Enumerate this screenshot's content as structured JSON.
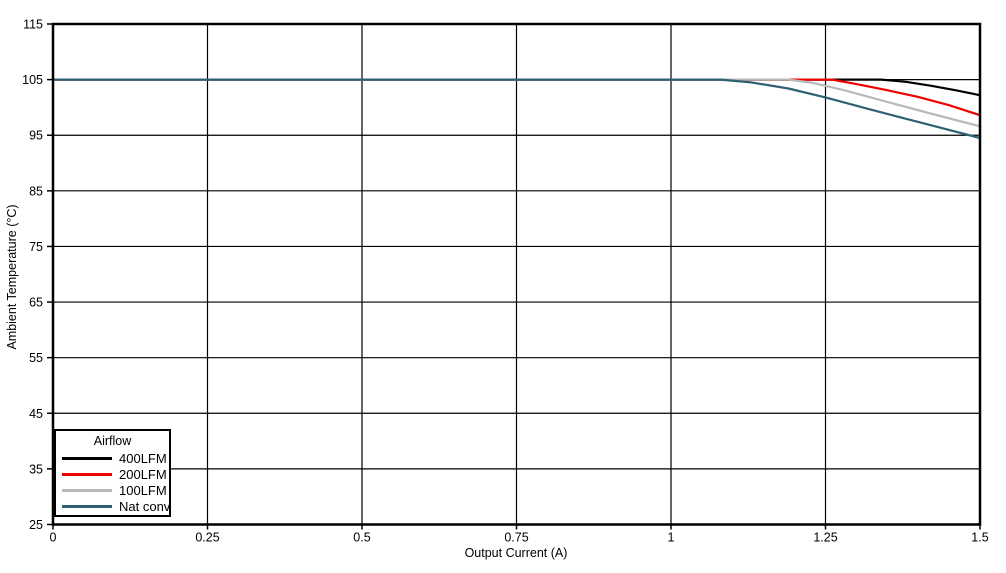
{
  "chart_data": {
    "type": "line",
    "title": "",
    "xlabel": "Output Current (A)",
    "ylabel": "Ambient Temperature (°C)",
    "xlim": [
      0,
      1.5
    ],
    "ylim": [
      25,
      115
    ],
    "xticks": [
      0,
      0.25,
      0.5,
      0.75,
      1,
      1.25,
      1.5
    ],
    "xtick_labels": [
      "0",
      "0.25",
      "0.5",
      "0.75",
      "1",
      "1.25",
      "1.5"
    ],
    "yticks": [
      25,
      35,
      45,
      55,
      65,
      75,
      85,
      95,
      105,
      115
    ],
    "ytick_labels": [
      "25",
      "35",
      "45",
      "55",
      "65",
      "75",
      "85",
      "95",
      "105",
      "115"
    ],
    "grid": true,
    "grid_color": "#000000",
    "axis_color": "#000000",
    "background": "#ffffff",
    "legend": {
      "title": "Airflow",
      "position": "lower-left"
    },
    "series": [
      {
        "name": "400LFM",
        "color": "#000000",
        "points": [
          [
            0,
            105
          ],
          [
            1.34,
            105
          ],
          [
            1.38,
            104.6
          ],
          [
            1.42,
            103.9
          ],
          [
            1.46,
            103.1
          ],
          [
            1.5,
            102.2
          ]
        ]
      },
      {
        "name": "200LFM",
        "color": "#ee0000",
        "points": [
          [
            0,
            105
          ],
          [
            1.26,
            105
          ],
          [
            1.3,
            104.2
          ],
          [
            1.35,
            103.1
          ],
          [
            1.4,
            101.9
          ],
          [
            1.45,
            100.4
          ],
          [
            1.5,
            98.6
          ]
        ]
      },
      {
        "name": "100LFM",
        "color": "#b9b9b9",
        "points": [
          [
            0,
            105
          ],
          [
            1.19,
            105
          ],
          [
            1.23,
            104.4
          ],
          [
            1.28,
            103.1
          ],
          [
            1.35,
            101.0
          ],
          [
            1.42,
            98.9
          ],
          [
            1.5,
            96.6
          ]
        ]
      },
      {
        "name": "Nat conv",
        "color": "#2e6173",
        "points": [
          [
            0,
            105
          ],
          [
            1.08,
            105
          ],
          [
            1.13,
            104.5
          ],
          [
            1.19,
            103.4
          ],
          [
            1.25,
            101.8
          ],
          [
            1.32,
            99.7
          ],
          [
            1.4,
            97.4
          ],
          [
            1.5,
            94.5
          ]
        ]
      }
    ]
  }
}
